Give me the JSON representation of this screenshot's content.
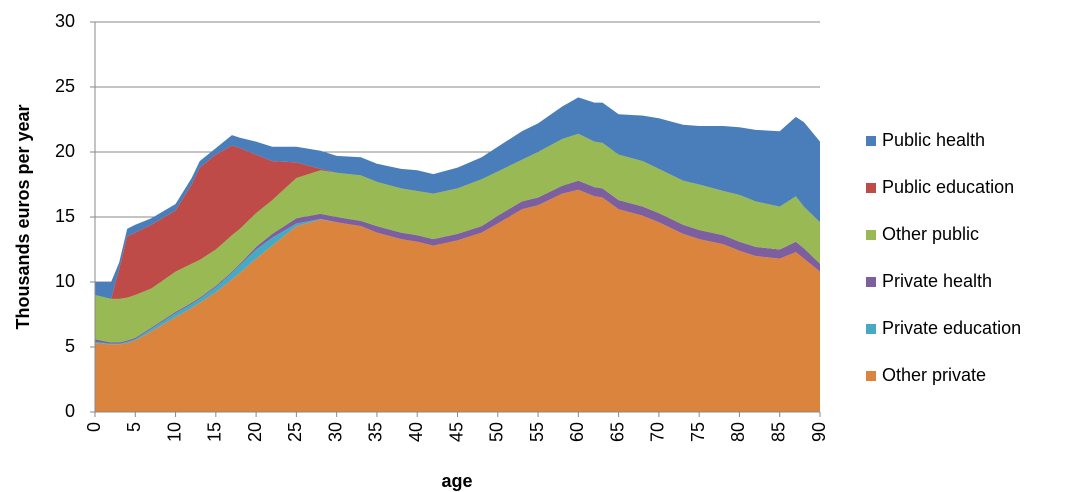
{
  "chart_data": {
    "type": "stacked_area",
    "xlabel": "age",
    "ylabel": "Thousands euros per year",
    "x": [
      0,
      2,
      3,
      4,
      5,
      7,
      10,
      12,
      13,
      15,
      17,
      18,
      20,
      22,
      25,
      28,
      30,
      33,
      35,
      38,
      40,
      42,
      45,
      48,
      50,
      53,
      55,
      58,
      60,
      62,
      63,
      65,
      68,
      70,
      73,
      75,
      78,
      80,
      82,
      85,
      87,
      88,
      90
    ],
    "xlim": [
      0,
      90
    ],
    "xticks": [
      0,
      5,
      10,
      15,
      20,
      25,
      30,
      35,
      40,
      45,
      50,
      55,
      60,
      65,
      70,
      75,
      80,
      85,
      90
    ],
    "ylim": [
      0,
      30
    ],
    "yticks": [
      0,
      5,
      10,
      15,
      20,
      25,
      30
    ],
    "grid": true,
    "legend": "right",
    "series": [
      {
        "name": "Other private",
        "color": "#db843d",
        "values": [
          5.3,
          5.2,
          5.2,
          5.3,
          5.5,
          6.2,
          7.3,
          8.0,
          8.4,
          9.2,
          10.2,
          10.7,
          11.8,
          12.8,
          14.3,
          14.8,
          14.6,
          14.3,
          13.8,
          13.3,
          13.1,
          12.8,
          13.2,
          13.8,
          14.5,
          15.6,
          15.9,
          16.8,
          17.1,
          16.6,
          16.5,
          15.6,
          15.1,
          14.6,
          13.7,
          13.3,
          12.9,
          12.4,
          12.0,
          11.8,
          12.3,
          11.8,
          10.8
        ]
      },
      {
        "name": "Private education",
        "color": "#46aac5",
        "values": [
          0.1,
          0.05,
          0.05,
          0.1,
          0.1,
          0.2,
          0.3,
          0.3,
          0.3,
          0.4,
          0.5,
          0.6,
          0.7,
          0.6,
          0.2,
          0.05,
          0,
          0,
          0,
          0,
          0,
          0,
          0,
          0,
          0,
          0,
          0,
          0,
          0,
          0,
          0,
          0,
          0,
          0,
          0,
          0,
          0,
          0,
          0,
          0,
          0,
          0,
          0
        ]
      },
      {
        "name": "Private health",
        "color": "#7d5fa0",
        "values": [
          0.2,
          0.1,
          0.1,
          0.1,
          0.1,
          0.1,
          0.1,
          0.1,
          0.1,
          0.1,
          0.1,
          0.1,
          0.2,
          0.3,
          0.4,
          0.4,
          0.4,
          0.4,
          0.5,
          0.5,
          0.5,
          0.5,
          0.5,
          0.5,
          0.6,
          0.6,
          0.6,
          0.6,
          0.7,
          0.7,
          0.7,
          0.7,
          0.7,
          0.7,
          0.7,
          0.7,
          0.7,
          0.7,
          0.7,
          0.7,
          0.8,
          0.8,
          0.6
        ]
      },
      {
        "name": "Other public",
        "color": "#98b954",
        "values": [
          3.4,
          3.35,
          3.35,
          3.3,
          3.3,
          3.0,
          3.1,
          3.0,
          2.9,
          2.8,
          2.8,
          2.7,
          2.6,
          2.6,
          3.1,
          3.35,
          3.4,
          3.5,
          3.4,
          3.4,
          3.4,
          3.5,
          3.5,
          3.6,
          3.4,
          3.2,
          3.5,
          3.6,
          3.6,
          3.5,
          3.5,
          3.5,
          3.5,
          3.4,
          3.4,
          3.5,
          3.4,
          3.6,
          3.5,
          3.3,
          3.5,
          3.2,
          3.2
        ]
      },
      {
        "name": "Public education",
        "color": "#be4b48",
        "values": [
          0,
          0,
          2.3,
          4.7,
          4.8,
          4.9,
          4.7,
          6.1,
          7.1,
          7.3,
          6.9,
          6.2,
          4.5,
          3.0,
          1.2,
          0.1,
          0,
          0,
          0,
          0,
          0,
          0,
          0,
          0,
          0,
          0,
          0,
          0,
          0,
          0,
          0,
          0,
          0,
          0,
          0,
          0,
          0,
          0,
          0,
          0,
          0,
          0,
          0
        ]
      },
      {
        "name": "Public health",
        "color": "#4a7ebb",
        "values": [
          1.0,
          1.3,
          0.5,
          0.6,
          0.6,
          0.5,
          0.5,
          0.5,
          0.5,
          0.5,
          0.8,
          0.8,
          1.0,
          1.1,
          1.2,
          1.4,
          1.3,
          1.4,
          1.4,
          1.5,
          1.6,
          1.5,
          1.6,
          1.7,
          1.9,
          2.2,
          2.2,
          2.5,
          2.8,
          3.0,
          3.1,
          3.1,
          3.5,
          3.9,
          4.3,
          4.5,
          5.0,
          5.2,
          5.5,
          5.8,
          6.1,
          6.5,
          6.2
        ]
      }
    ]
  }
}
